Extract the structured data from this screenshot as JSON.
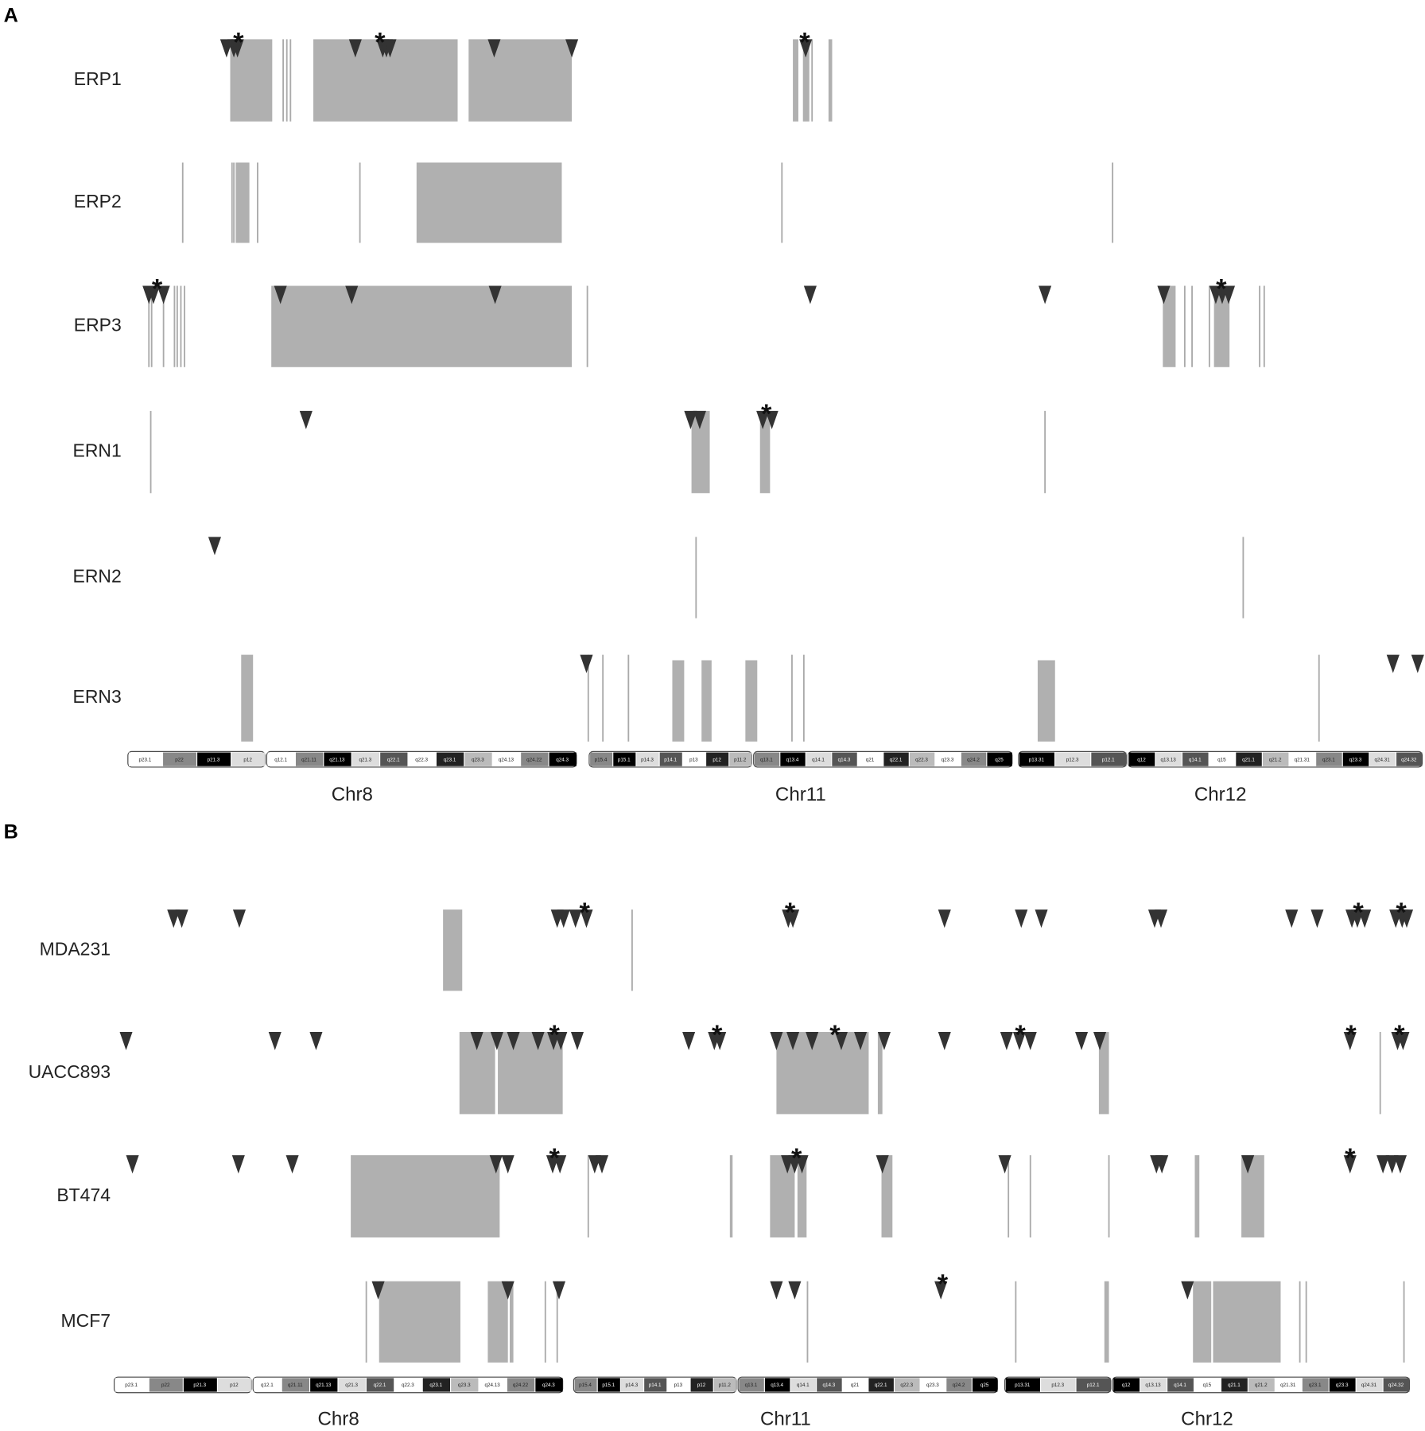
{
  "panel_a": {
    "label": "A",
    "rows": [
      "ERP1",
      "ERP2",
      "ERP3",
      "ERN1",
      "ERN2",
      "ERN3"
    ]
  },
  "panel_b": {
    "label": "B",
    "rows": [
      "MDA231",
      "UACC893",
      "BT474",
      "MCF7"
    ]
  },
  "significance_mark": "*",
  "chromosomes": [
    {
      "name": "Chr8",
      "p_bands": [
        "p23.1",
        "p22",
        "p21.3",
        "p12"
      ],
      "q_bands": [
        "q12.1",
        "q21.11",
        "q21.13",
        "q21.3",
        "q22.1",
        "q22.3",
        "q23.1",
        "q23.3",
        "q24.13",
        "q24.22",
        "q24.3"
      ]
    },
    {
      "name": "Chr11",
      "p_bands": [
        "p15.4",
        "p15.1",
        "p14.3",
        "p14.1",
        "p13",
        "p12",
        "p11.2"
      ],
      "q_bands": [
        "q13.1",
        "q13.4",
        "q14.1",
        "q14.3",
        "q21",
        "q22.1",
        "q22.3",
        "q23.3",
        "q24.2",
        "q25"
      ]
    },
    {
      "name": "Chr12",
      "p_bands": [
        "p13.31",
        "p12.3",
        "p12.1"
      ],
      "q_bands": [
        "q12",
        "q13.13",
        "q14.1",
        "q15",
        "q21.1",
        "q21.2",
        "q21.31",
        "q23.1",
        "q23.3",
        "q24.31",
        "q24.32"
      ]
    }
  ]
}
